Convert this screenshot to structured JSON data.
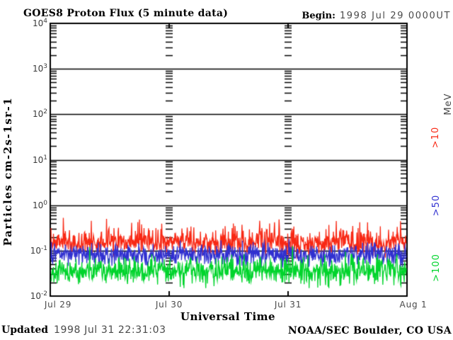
{
  "header": {
    "begin_label": "Begin:",
    "begin_value": "1998 Jul 29 0000UT"
  },
  "footer": {
    "updated_label": "Updated",
    "updated_value": "1998 Jul 31 22:31:03",
    "credit": "NOAA/SEC Boulder, CO USA"
  },
  "chart_data": {
    "type": "line",
    "title": "GOES8 Proton Flux (5 minute data)",
    "xlabel": "Universal Time",
    "ylabel": "Particles cm-2s-1sr-1",
    "right_axis_unit": "MeV",
    "x_tick_labels": [
      "Jul 29",
      "Jul 30",
      "Jul 31",
      "Aug 1"
    ],
    "y_tick_exponents": [
      4,
      3,
      2,
      1,
      0,
      -1,
      -2
    ],
    "ylim": [
      0.01,
      10000
    ],
    "x_range_days": 3,
    "sample_interval_minutes": 5,
    "grid": {
      "horizontal_gridlines": "solid line at each decade",
      "vertical_gridlines": "minor-tick dash ladders at each day boundary"
    },
    "series": [
      {
        "name": ">10",
        "energy_threshold": ">10 MeV",
        "color": "#f82814",
        "typical_flux": 0.15,
        "min_flux": 0.08,
        "max_flux": 0.45,
        "log10_mean": -0.83,
        "log10_sigma": 0.13,
        "spike_probability": 0.1,
        "spike_log10_amplitude": 0.45,
        "seed": 7
      },
      {
        "name": ">50",
        "energy_threshold": ">50 MeV",
        "color": "#3030d0",
        "typical_flux": 0.08,
        "min_flux": 0.04,
        "max_flux": 0.17,
        "log10_mean": -1.1,
        "log10_sigma": 0.11,
        "spike_probability": 0.07,
        "spike_log10_amplitude": 0.28,
        "seed": 13
      },
      {
        "name": ">100",
        "energy_threshold": ">100 MeV",
        "color": "#00d42c",
        "typical_flux": 0.035,
        "min_flux": 0.013,
        "max_flux": 0.09,
        "log10_mean": -1.45,
        "log10_sigma": 0.15,
        "spike_probability": 0.06,
        "spike_log10_amplitude": 0.3,
        "seed": 21
      }
    ]
  }
}
